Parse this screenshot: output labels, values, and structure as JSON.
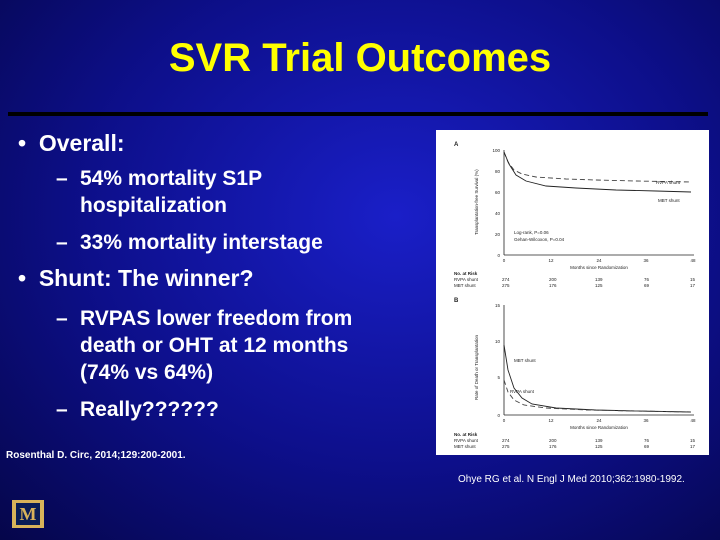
{
  "slide": {
    "title": "SVR Trial Outcomes",
    "bullets": [
      {
        "text": "Overall:",
        "sub": [
          "54% mortality S1P hospitalization",
          "33% mortality interstage"
        ]
      },
      {
        "text": "Shunt: The winner?",
        "sub": [
          "RVPAS lower freedom from death or OHT at 12 months (74% vs 64%)",
          "Really??????"
        ]
      }
    ],
    "citation_left": "Rosenthal D. Circ, 2014;129:200-2001.",
    "citation_right": "Ohye RG et al. N Engl J Med 2010;362:1980-1992.",
    "logo_text": "M"
  },
  "figure": {
    "panel_a": {
      "label": "A",
      "ylabel": "Transplantation-free Survival (%)",
      "yticks": [
        "100",
        "80",
        "60",
        "40",
        "20",
        "0"
      ],
      "xticks": [
        "0",
        "12",
        "24",
        "36",
        "48"
      ],
      "xlabel": "Months since Randomization",
      "stats": [
        "Log-rank, P=0.06",
        "Gehan-Wilcoxon, P=0.04"
      ],
      "series": [
        {
          "name": "RVPA shunt",
          "color": "#444444",
          "dash": "5,3"
        },
        {
          "name": "MBT shunt",
          "color": "#222222",
          "dash": ""
        }
      ],
      "risk_title": "No. at Risk",
      "risk_rows": [
        {
          "label": "RVPA shunt",
          "values": [
            "274",
            "200",
            "139",
            "76",
            "15"
          ]
        },
        {
          "label": "MBT shunt",
          "values": [
            "275",
            "176",
            "125",
            "69",
            "17"
          ]
        }
      ]
    },
    "panel_b": {
      "label": "B",
      "ylabel": "Rate of Death or Transplantation",
      "yticks": [
        "15",
        "10",
        "5",
        "0"
      ],
      "xticks": [
        "0",
        "12",
        "24",
        "36",
        "48"
      ],
      "xlabel": "Months since Randomization",
      "series": [
        {
          "name": "MBT shunt",
          "color": "#222222",
          "dash": ""
        },
        {
          "name": "RVPA shunt",
          "color": "#444444",
          "dash": "5,3"
        }
      ],
      "risk_title": "No. at Risk",
      "risk_rows": [
        {
          "label": "RVPA shunt",
          "values": [
            "274",
            "200",
            "139",
            "76",
            "15"
          ]
        },
        {
          "label": "MBT shunt",
          "values": [
            "275",
            "176",
            "125",
            "69",
            "17"
          ]
        }
      ]
    }
  }
}
